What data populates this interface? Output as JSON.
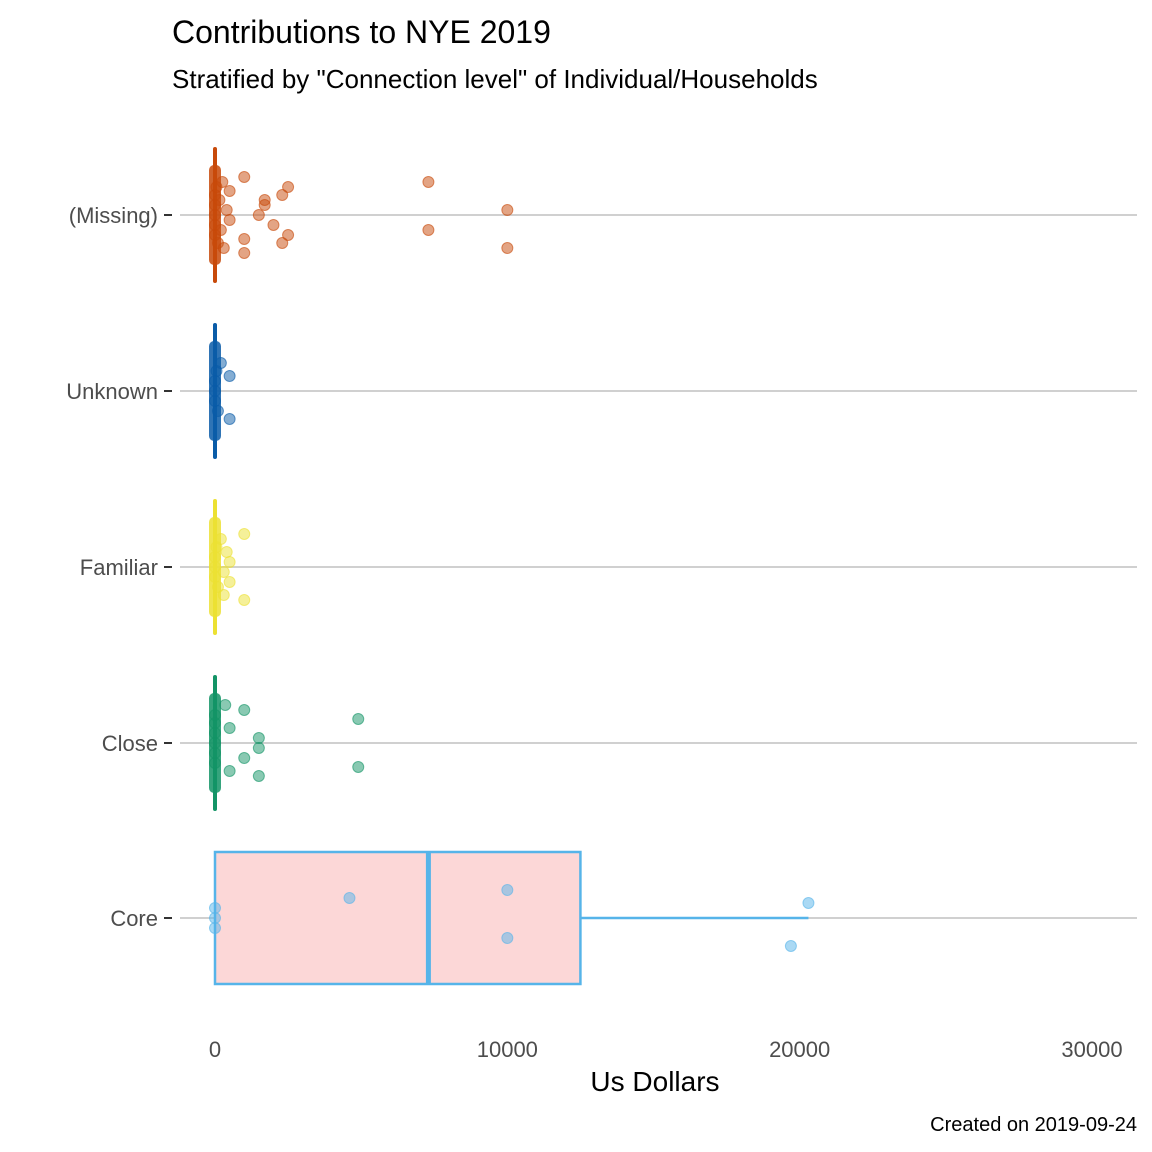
{
  "chart_data": {
    "type": "boxplot",
    "orientation": "horizontal",
    "title": "Contributions to NYE 2019",
    "subtitle": "Stratified by \"Connection level\" of Individual/Households",
    "xlabel": "Us Dollars",
    "ylabel": "",
    "caption": "Created on 2019-09-24",
    "xlim": [
      0,
      30000
    ],
    "x_ticks": [
      0,
      10000,
      20000,
      30000
    ],
    "x_tick_labels": [
      "0",
      "10000",
      "20000",
      "30000"
    ],
    "grid": "horizontal major lines at each category",
    "categories": [
      "(Missing)",
      "Unknown",
      "Familiar",
      "Close",
      "Core"
    ],
    "groups": [
      {
        "name": "(Missing)",
        "color": "#C84A0A",
        "box": {
          "min": 0,
          "q1": 0,
          "median": 0,
          "q3": 0,
          "max": 0
        },
        "points": [
          0,
          0,
          0,
          0,
          0,
          50,
          100,
          150,
          200,
          250,
          300,
          400,
          500,
          500,
          1000,
          1000,
          1000,
          1500,
          1700,
          2000,
          2300,
          2500,
          2500,
          2300,
          1700,
          7300,
          7300,
          10000,
          10000
        ]
      },
      {
        "name": "Unknown",
        "color": "#0A5CA8",
        "box": {
          "min": 0,
          "q1": 0,
          "median": 0,
          "q3": 0,
          "max": 0
        },
        "points": [
          0,
          0,
          0,
          50,
          100,
          200,
          500,
          500
        ]
      },
      {
        "name": "Familiar",
        "color": "#ECE133",
        "box": {
          "min": 0,
          "q1": 0,
          "median": 0,
          "q3": 0,
          "max": 0
        },
        "points": [
          0,
          0,
          0,
          50,
          100,
          200,
          300,
          400,
          500,
          1000,
          1000,
          500,
          300
        ]
      },
      {
        "name": "Close",
        "color": "#139466",
        "box": {
          "min": 0,
          "q1": 0,
          "median": 0,
          "q3": 0,
          "max": 0
        },
        "points": [
          0,
          0,
          0,
          0,
          0,
          0,
          500,
          500,
          1000,
          1000,
          1500,
          1500,
          1500,
          4900,
          4900,
          350
        ]
      },
      {
        "name": "Core",
        "color": "#56B4E9",
        "box_fill": "#FCD7D7",
        "box": {
          "min": 0,
          "q1": 0,
          "median": 7300,
          "q3": 12500,
          "max": 20300
        },
        "points": [
          0,
          0,
          0,
          4600,
          10000,
          10000,
          19700,
          20300
        ]
      }
    ]
  }
}
